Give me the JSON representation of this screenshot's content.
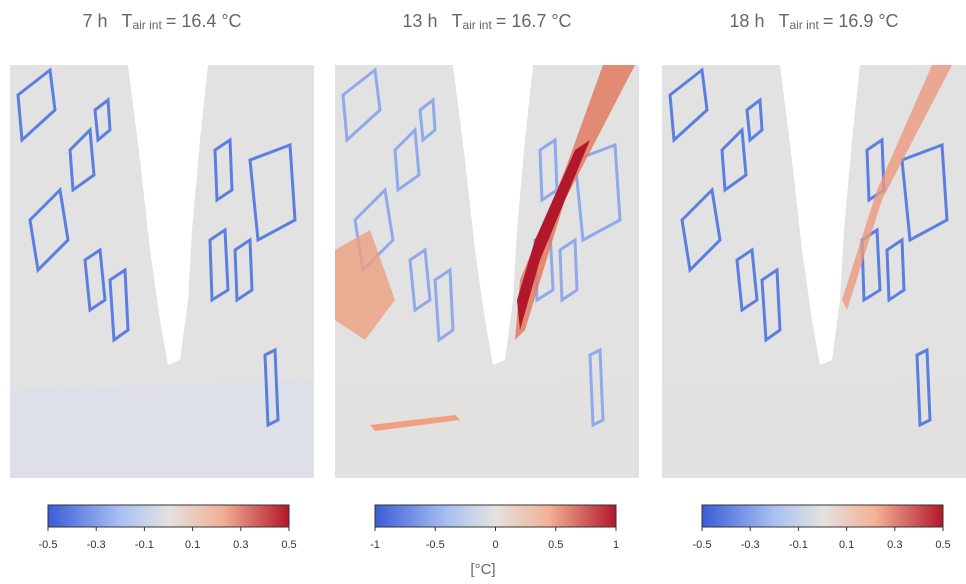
{
  "panels": [
    {
      "time": "7 h",
      "label": "T",
      "subscript": "air int",
      "value": "= 16.4 °C",
      "colorbar": {
        "lim": [
          -0.5,
          0.5
        ],
        "ticks": [
          -0.5,
          -0.3,
          -0.1,
          0.1,
          0.3,
          0.5
        ]
      }
    },
    {
      "time": "13 h",
      "label": "T",
      "subscript": "air int",
      "value": "= 16.7 °C",
      "colorbar": {
        "lim": [
          -1,
          1
        ],
        "ticks": [
          -1,
          -0.5,
          0,
          0.5,
          1
        ]
      }
    },
    {
      "time": "18 h",
      "label": "T",
      "subscript": "air int",
      "value": "= 16.9 °C",
      "colorbar": {
        "lim": [
          -0.5,
          0.5
        ],
        "ticks": [
          -0.5,
          -0.3,
          -0.1,
          0.1,
          0.3,
          0.5
        ]
      }
    }
  ],
  "colorbar_unit": "[°C]"
}
